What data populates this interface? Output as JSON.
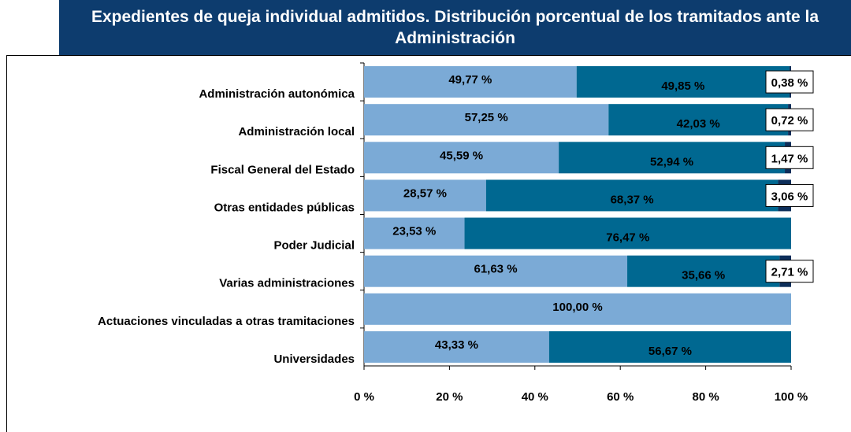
{
  "chart_data": {
    "type": "stacked-bar-horizontal",
    "title": "Expedientes de queja individual admitidos. Distribución porcentual de los tramitados ante la Administración",
    "categories": [
      "Administración autonómica",
      "Administración local",
      "Fiscal General del Estado",
      "Otras entidades públicas",
      "Poder Judicial",
      "Varias administraciones",
      "Actuaciones vinculadas a otras tramitaciones",
      "Universidades"
    ],
    "series": [
      {
        "color": "#7baad6",
        "values": [
          49.77,
          57.25,
          45.59,
          28.57,
          23.53,
          61.63,
          100.0,
          43.33
        ],
        "value_labels": [
          "49,77 %",
          "57,25 %",
          "45,59 %",
          "28,57 %",
          "23,53 %",
          "61,63 %",
          "100,00 %",
          "43,33 %"
        ]
      },
      {
        "color": "#006891",
        "values": [
          49.85,
          42.03,
          52.94,
          68.37,
          76.47,
          35.66,
          null,
          56.67
        ],
        "value_labels": [
          "49,85 %",
          "42,03 %",
          "52,94 %",
          "68,37 %",
          "76,47 %",
          "35,66 %",
          null,
          "56,67 %"
        ]
      },
      {
        "color": "#0d2e5a",
        "values": [
          0.38,
          0.72,
          1.47,
          3.06,
          null,
          2.71,
          null,
          null
        ],
        "value_labels": [
          "0,38 %",
          "0,72 %",
          "1,47 %",
          "3,06 %",
          null,
          "2,71 %",
          null,
          null
        ]
      }
    ],
    "xlim": [
      0,
      100
    ],
    "xticks": [
      {
        "value": 0,
        "label": "0 %"
      },
      {
        "value": 20,
        "label": "20 %"
      },
      {
        "value": 40,
        "label": "40 %"
      },
      {
        "value": 60,
        "label": "60 %"
      },
      {
        "value": 80,
        "label": "80 %"
      },
      {
        "value": 100,
        "label": "100 %"
      }
    ]
  }
}
